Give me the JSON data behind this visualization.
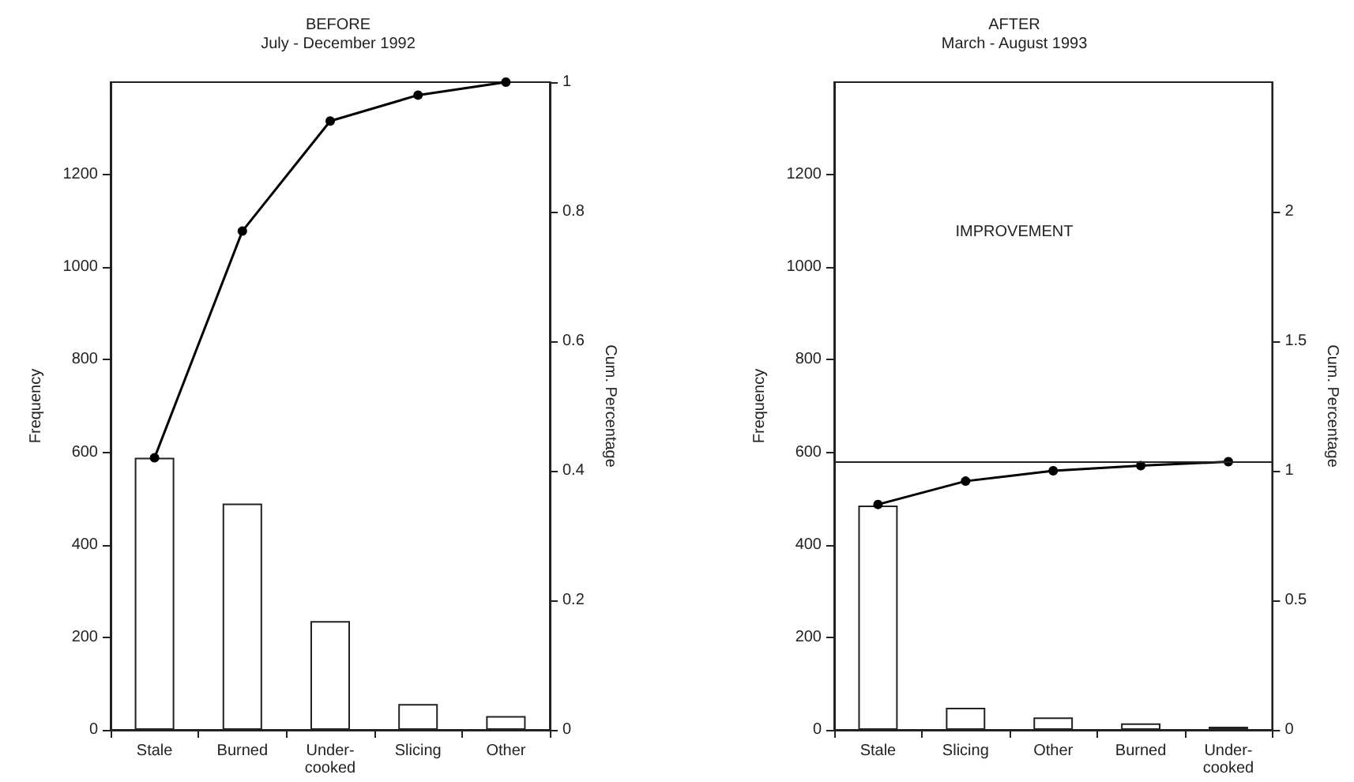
{
  "chart_data": [
    {
      "type": "bar",
      "title": "BEFORE",
      "subtitle": "July - December 1992",
      "ylabel": "Frequency",
      "y2label": "Cum. Percentage",
      "categories": [
        "Stale",
        "Burned",
        "Under-cooked",
        "Slicing",
        "Other"
      ],
      "series": [
        {
          "color": "#ffffff",
          "values": [
            588,
            489,
            235,
            56,
            30
          ]
        },
        {
          "type": "line",
          "axis": "y2",
          "color": "#000000",
          "values": [
            0.42,
            0.77,
            0.94,
            0.98,
            1.0
          ]
        }
      ],
      "ylim": [
        0,
        1400
      ],
      "yticks": [
        0,
        200,
        400,
        600,
        800,
        1000,
        1200
      ],
      "y2lim": [
        0,
        1
      ],
      "y2ticks": [
        0,
        0.2,
        0.4,
        0.6,
        0.8,
        1
      ],
      "grid": false,
      "marker": "circle",
      "line_style": "solid"
    },
    {
      "type": "bar",
      "title": "AFTER",
      "subtitle": "March - August 1993",
      "ylabel": "Frequency",
      "y2label": "Cum. Percentage",
      "categories": [
        "Stale",
        "Slicing",
        "Other",
        "Burned",
        "Under-cooked"
      ],
      "series": [
        {
          "color": "#ffffff",
          "values": [
            485,
            48,
            27,
            14,
            7
          ]
        },
        {
          "type": "line",
          "axis": "y2",
          "color": "#000000",
          "values": [
            0.87,
            0.96,
            1.0,
            1.02,
            1.035
          ]
        }
      ],
      "ylim": [
        0,
        1400
      ],
      "yticks": [
        0,
        200,
        400,
        600,
        800,
        1000,
        1200
      ],
      "y2lim": [
        0,
        2.5
      ],
      "y2ticks": [
        0,
        0.5,
        1,
        1.5,
        2
      ],
      "ref_lines": [
        {
          "axis": "y",
          "value": 580
        }
      ],
      "annotations": [
        "IMPROVEMENT"
      ],
      "grid": false,
      "marker": "circle",
      "line_style": "solid"
    }
  ]
}
